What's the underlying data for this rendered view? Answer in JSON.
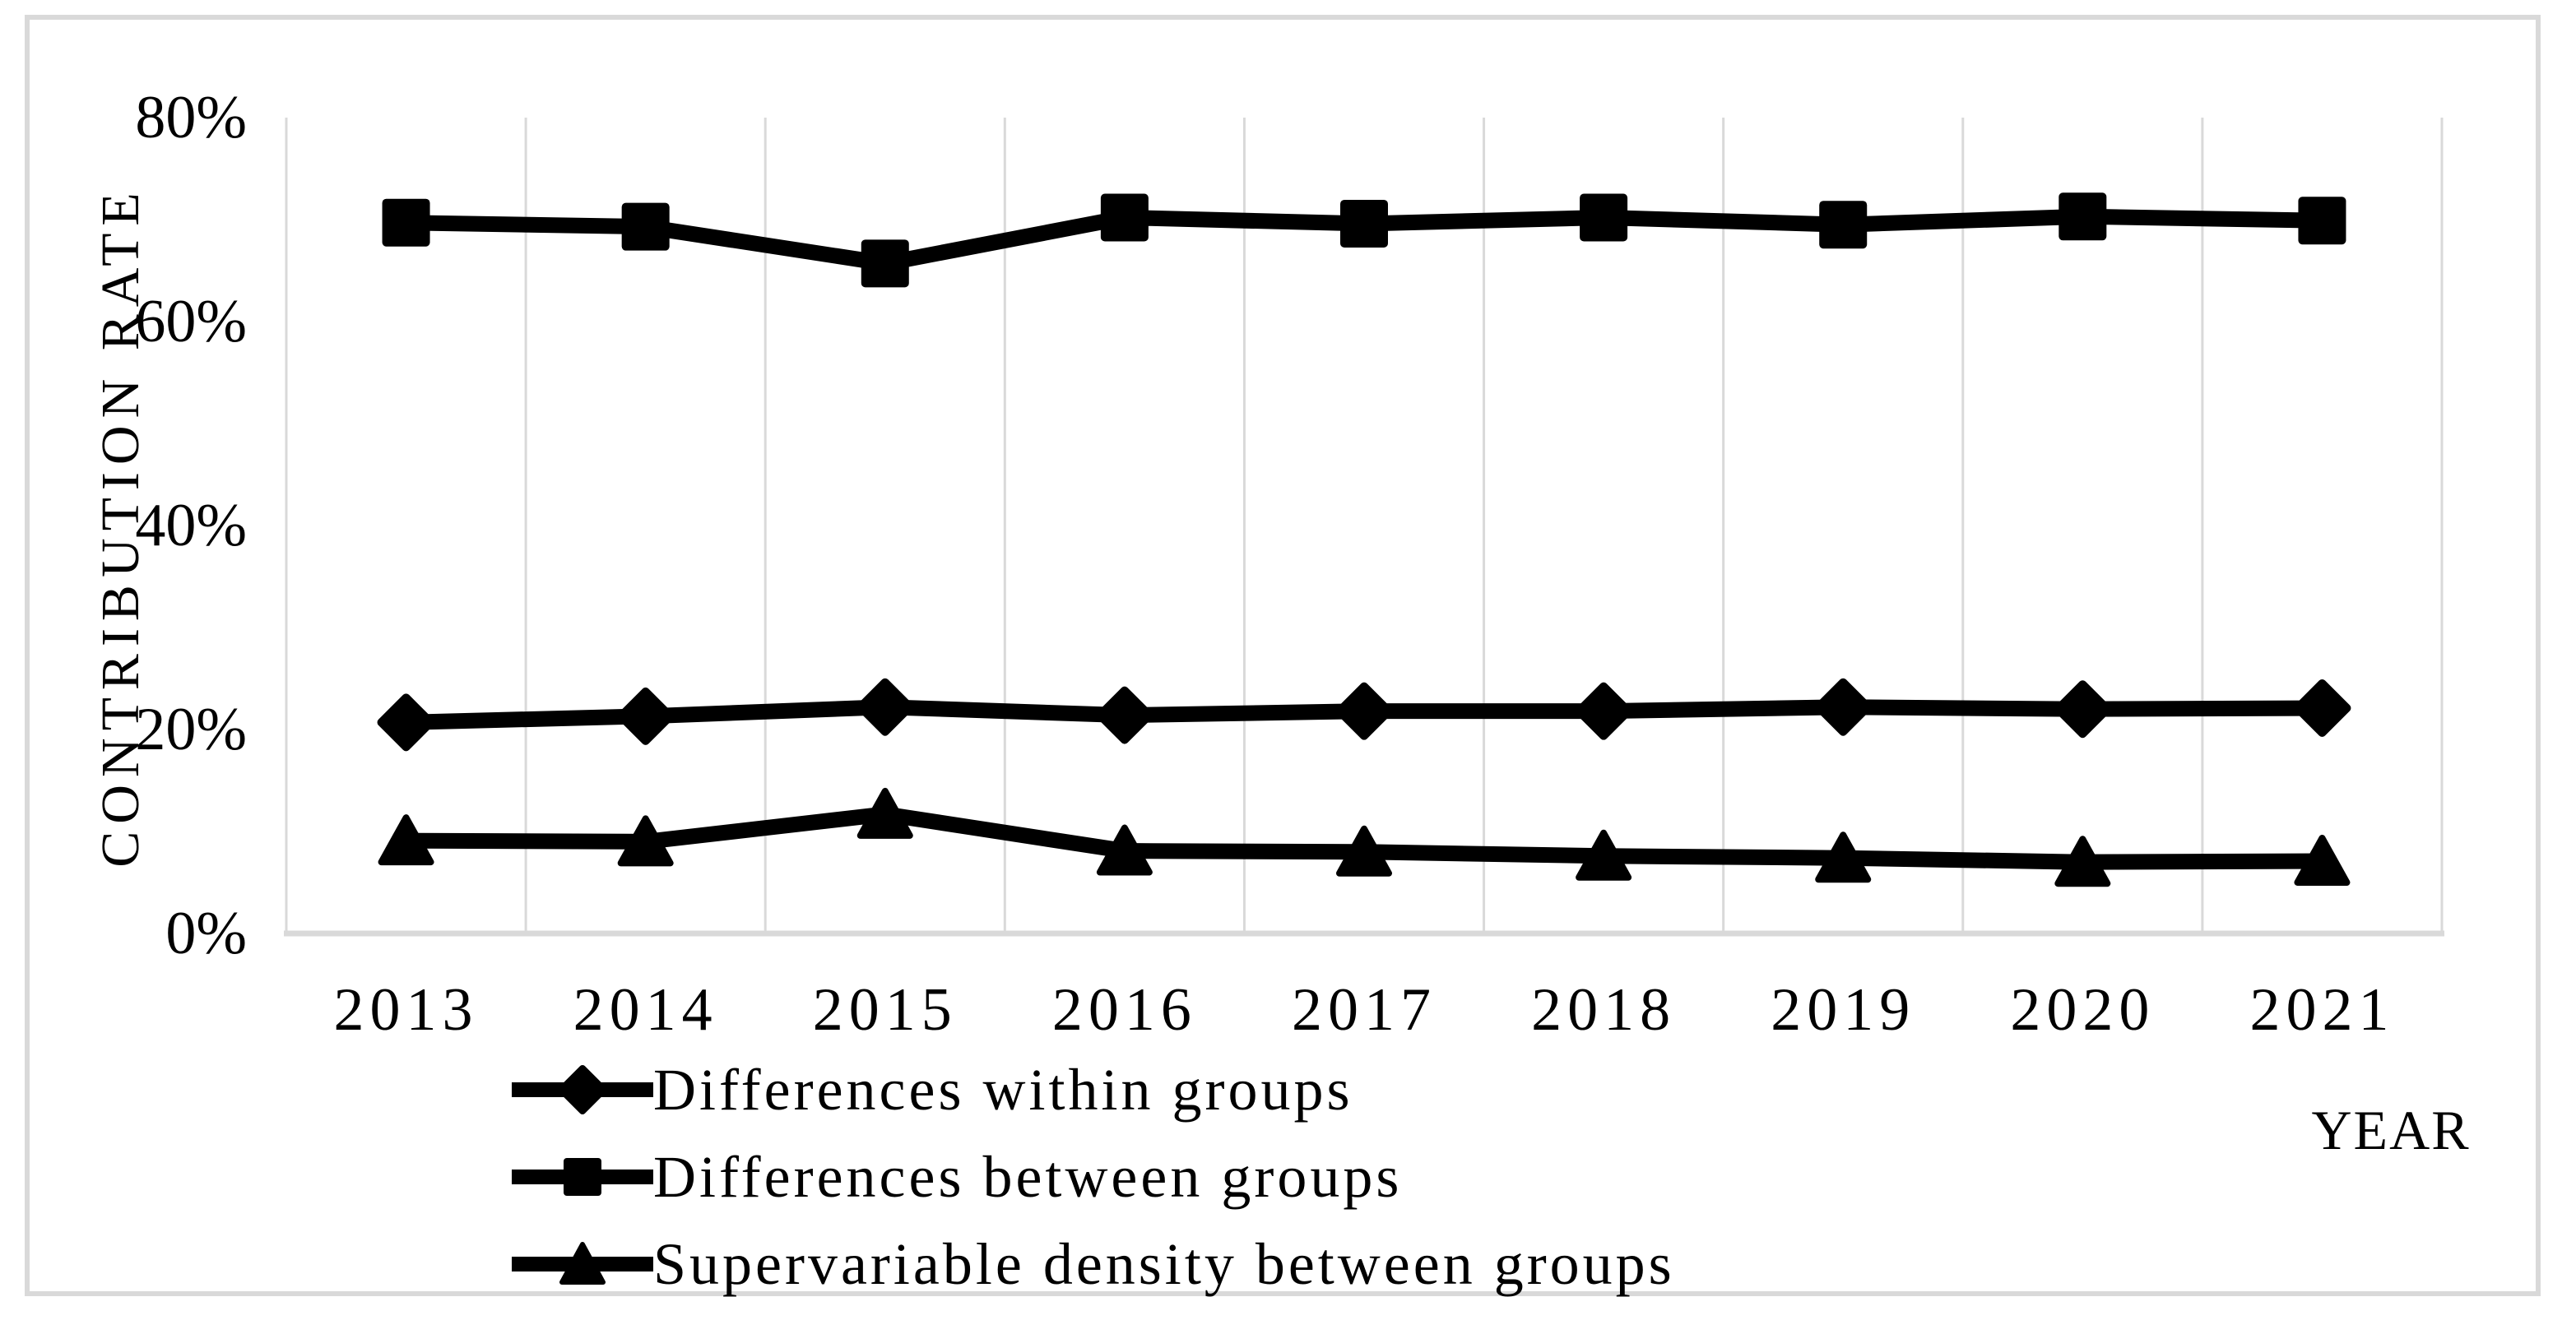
{
  "figure": {
    "background": "#ffffff",
    "border_color": "#d9d9d9"
  },
  "chart_data": {
    "type": "line",
    "title": "",
    "categories": [
      "2013",
      "2014",
      "2015",
      "2016",
      "2017",
      "2018",
      "2019",
      "2020",
      "2021"
    ],
    "series": [
      {
        "name": "Differences within groups",
        "marker": "diamond",
        "color": "#000000",
        "values": [
          20.7,
          21.3,
          22.2,
          21.4,
          21.8,
          21.8,
          22.2,
          22.0,
          22.1
        ]
      },
      {
        "name": "Differences between groups",
        "marker": "square",
        "color": "#000000",
        "values": [
          69.7,
          69.3,
          65.7,
          70.2,
          69.6,
          70.2,
          69.5,
          70.3,
          69.9
        ]
      },
      {
        "name": "Supervariable density between groups",
        "marker": "triangle",
        "color": "#000000",
        "values": [
          9.1,
          9.0,
          11.7,
          8.1,
          8.0,
          7.6,
          7.4,
          7.0,
          7.1
        ]
      }
    ],
    "xlabel": "YEAR",
    "ylabel": "CONTRIBUTION RATE",
    "ylim": [
      0,
      80
    ],
    "y_ticks": [
      "0%",
      "20%",
      "40%",
      "60%",
      "80%"
    ],
    "y_tick_values": [
      0,
      20,
      40,
      60,
      80
    ],
    "grid": "vertical-only",
    "gridline_color": "#d9d9d9",
    "axisline_color": "#d9d9d9",
    "line_color": "#000000",
    "legend_position": "bottom-left"
  }
}
